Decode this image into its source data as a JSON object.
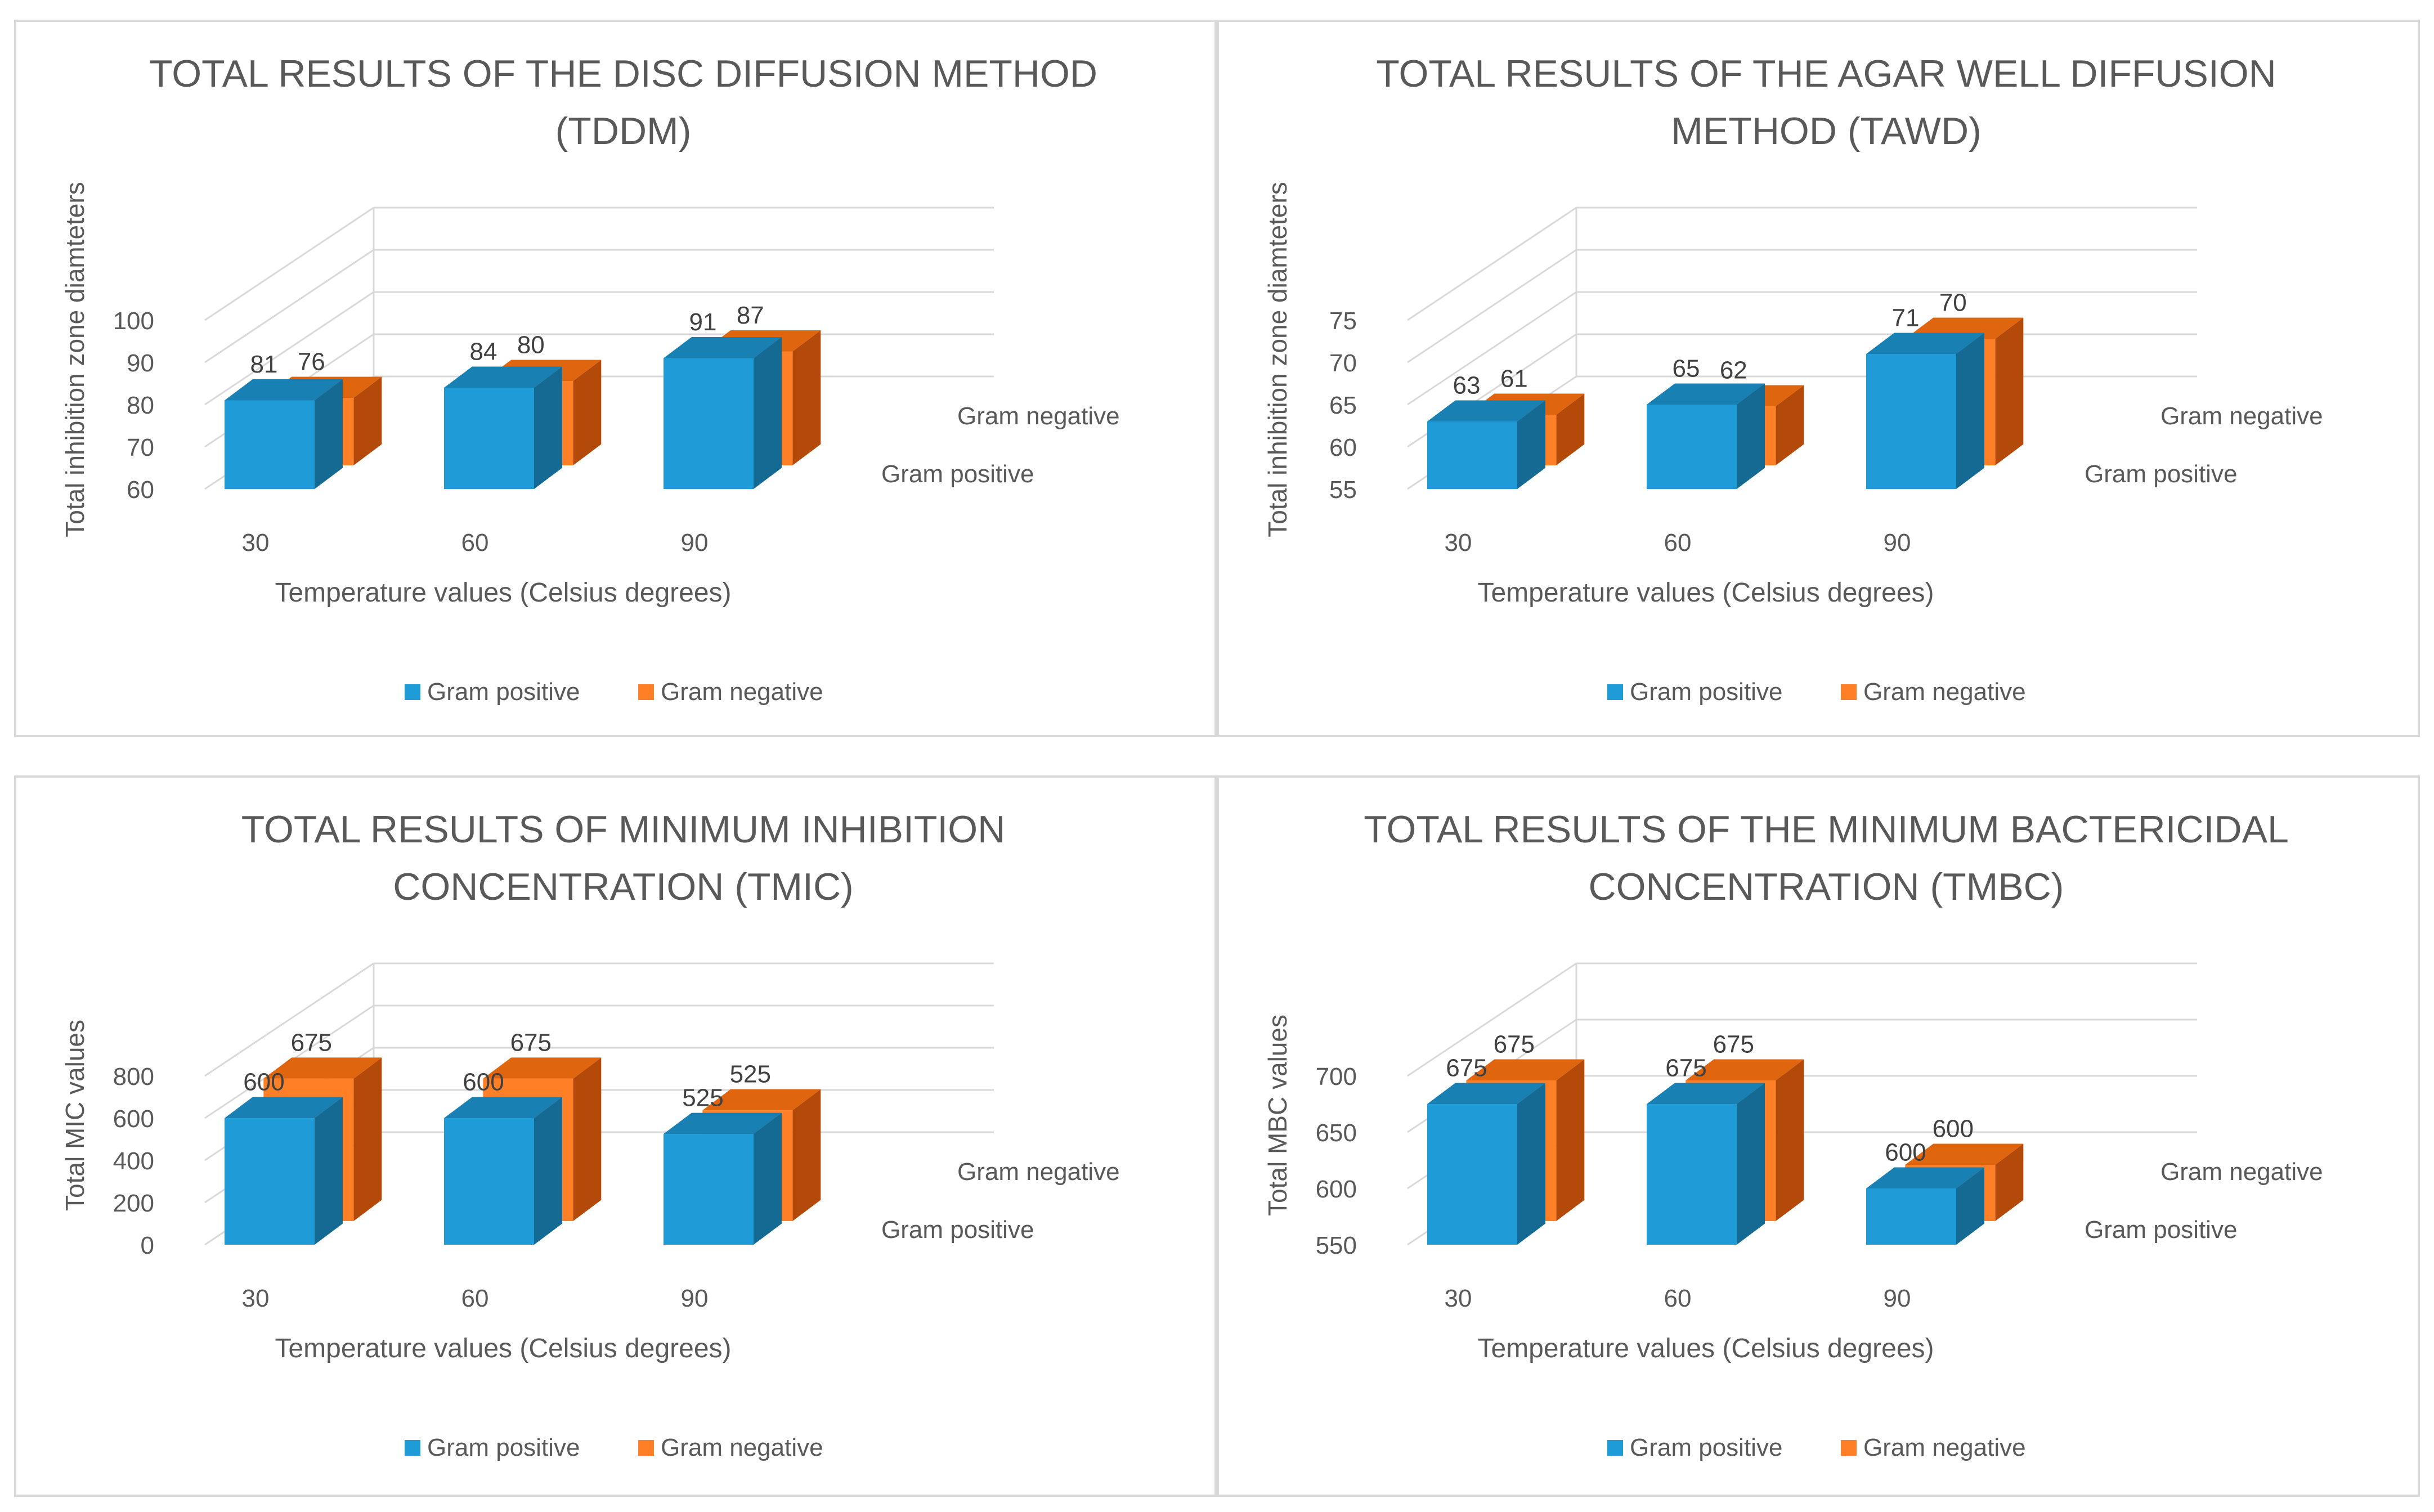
{
  "colors": {
    "pos_front": "#1f9bd7",
    "pos_side": "#156a93",
    "pos_top": "#1880b3",
    "neg_front": "#ff7f27",
    "neg_side": "#b34a0a",
    "neg_top": "#e0650f",
    "grid": "#d9d9d9",
    "text": "#595959",
    "title": "#595959"
  },
  "chart_data": [
    {
      "type": "bar",
      "title_lines": [
        "TOTAL RESULTS OF THE DISC DIFFUSION METHOD",
        "(TDDM)"
      ],
      "xlabel": "Temperature  values (Celsius degrees)",
      "ylabel": "Total inhibition zone diamteters",
      "categories": [
        "30",
        "60",
        "90"
      ],
      "yticks": [
        "60",
        "70",
        "80",
        "90",
        "100"
      ],
      "ylim": [
        60,
        100
      ],
      "series": [
        {
          "name": "Gram positive",
          "values": [
            81,
            84,
            91
          ],
          "labels": [
            "81",
            "84",
            "91"
          ]
        },
        {
          "name": "Gram negative",
          "values": [
            76,
            80,
            87
          ],
          "labels": [
            "76",
            "80",
            "87"
          ]
        }
      ],
      "depth_labels": [
        "Gram positive",
        "Gram negative"
      ],
      "legend": [
        "Gram positive",
        "Gram negative"
      ]
    },
    {
      "type": "bar",
      "title_lines": [
        "TOTAL RESULTS OF THE AGAR WELL DIFFUSION",
        "METHOD (TAWD)"
      ],
      "xlabel": "Temperature  values (Celsius degrees)",
      "ylabel": "Total inhibition zone diamteters",
      "categories": [
        "30",
        "60",
        "90"
      ],
      "yticks": [
        "55",
        "60",
        "65",
        "70",
        "75"
      ],
      "ylim": [
        55,
        75
      ],
      "series": [
        {
          "name": "Gram positive",
          "values": [
            63,
            65,
            71
          ],
          "labels": [
            "63",
            "65",
            "71"
          ]
        },
        {
          "name": "Gram negative",
          "values": [
            61,
            62,
            70
          ],
          "labels": [
            "61",
            "62",
            "70"
          ]
        }
      ],
      "depth_labels": [
        "Gram positive",
        "Gram negative"
      ],
      "legend": [
        "Gram positive",
        "Gram negative"
      ]
    },
    {
      "type": "bar",
      "title_lines": [
        "TOTAL RESULTS OF MINIMUM INHIBITION",
        "CONCENTRATION (TMIC)"
      ],
      "xlabel": "Temperature  values (Celsius degrees)",
      "ylabel": "Total MIC values",
      "categories": [
        "30",
        "60",
        "90"
      ],
      "yticks": [
        "0",
        "200",
        "400",
        "600",
        "800"
      ],
      "ylim": [
        0,
        800
      ],
      "series": [
        {
          "name": "Gram positive",
          "values": [
            600,
            600,
            525
          ],
          "labels": [
            "600",
            "600",
            "525"
          ]
        },
        {
          "name": "Gram negative",
          "values": [
            675,
            675,
            525
          ],
          "labels": [
            "675",
            "675",
            "525"
          ]
        }
      ],
      "depth_labels": [
        "Gram positive",
        "Gram negative"
      ],
      "legend": [
        "Gram positive",
        "Gram negative"
      ]
    },
    {
      "type": "bar",
      "title_lines": [
        "TOTAL RESULTS OF THE MINIMUM BACTERICIDAL",
        "CONCENTRATION (TMBC)"
      ],
      "xlabel": "Temperature  values (Celsius degrees)",
      "ylabel": "Total MBC values",
      "categories": [
        "30",
        "60",
        "90"
      ],
      "yticks": [
        "550",
        "600",
        "650",
        "700"
      ],
      "ylim": [
        550,
        700
      ],
      "series": [
        {
          "name": "Gram positive",
          "values": [
            675,
            675,
            600
          ],
          "labels": [
            "675",
            "675",
            "600"
          ]
        },
        {
          "name": "Gram negative",
          "values": [
            675,
            675,
            600
          ],
          "labels": [
            "675",
            "675",
            "600"
          ]
        }
      ],
      "depth_labels": [
        "Gram positive",
        "Gram negative"
      ],
      "legend": [
        "Gram positive",
        "Gram negative"
      ]
    }
  ]
}
